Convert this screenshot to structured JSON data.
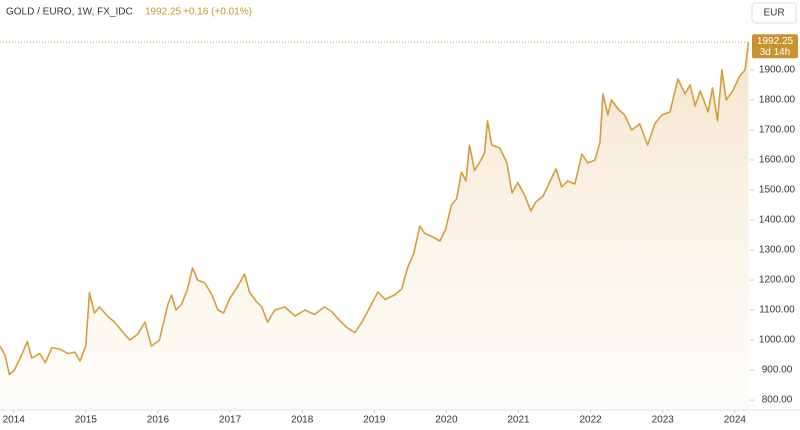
{
  "chart_data": {
    "type": "area",
    "title": "GOLD / EURO, 1W, FX_IDC",
    "last_price": 1992.25,
    "change": "+0.16 (+0.01%)",
    "countdown": "3d 14h",
    "currency": "EUR",
    "color": "#d49e3a",
    "x": [
      2013.81,
      2013.88,
      2013.94,
      2014.01,
      2014.11,
      2014.19,
      2014.25,
      2014.36,
      2014.44,
      2014.53,
      2014.64,
      2014.75,
      2014.85,
      2014.92,
      2015.0,
      2015.05,
      2015.12,
      2015.19,
      2015.3,
      2015.4,
      2015.5,
      2015.61,
      2015.72,
      2015.82,
      2015.91,
      2016.02,
      2016.14,
      2016.19,
      2016.25,
      2016.33,
      2016.41,
      2016.48,
      2016.55,
      2016.65,
      2016.75,
      2016.83,
      2016.91,
      2017.0,
      2017.11,
      2017.2,
      2017.27,
      2017.36,
      2017.44,
      2017.52,
      2017.62,
      2017.76,
      2017.9,
      2018.04,
      2018.17,
      2018.31,
      2018.41,
      2018.52,
      2018.63,
      2018.73,
      2018.83,
      2018.94,
      2019.05,
      2019.15,
      2019.28,
      2019.38,
      2019.46,
      2019.55,
      2019.63,
      2019.7,
      2019.8,
      2019.91,
      2019.99,
      2020.07,
      2020.14,
      2020.21,
      2020.27,
      2020.32,
      2020.39,
      2020.48,
      2020.53,
      2020.57,
      2020.63,
      2020.74,
      2020.84,
      2020.91,
      2020.99,
      2021.09,
      2021.17,
      2021.24,
      2021.34,
      2021.42,
      2021.52,
      2021.6,
      2021.68,
      2021.78,
      2021.88,
      2021.96,
      2022.06,
      2022.13,
      2022.17,
      2022.24,
      2022.29,
      2022.38,
      2022.47,
      2022.57,
      2022.68,
      2022.79,
      2022.89,
      2022.99,
      2023.1,
      2023.21,
      2023.31,
      2023.38,
      2023.45,
      2023.52,
      2023.63,
      2023.69,
      2023.76,
      2023.82,
      2023.88,
      2023.97,
      2024.07,
      2024.14,
      2024.19
    ],
    "values": [
      980,
      950,
      885,
      900,
      950,
      995,
      940,
      955,
      925,
      975,
      970,
      955,
      960,
      930,
      980,
      1157,
      1090,
      1110,
      1080,
      1060,
      1030,
      1000,
      1020,
      1060,
      980,
      1000,
      1120,
      1150,
      1100,
      1120,
      1170,
      1240,
      1200,
      1190,
      1150,
      1100,
      1090,
      1140,
      1180,
      1220,
      1160,
      1130,
      1110,
      1060,
      1100,
      1110,
      1080,
      1100,
      1085,
      1110,
      1095,
      1065,
      1040,
      1025,
      1060,
      1110,
      1160,
      1135,
      1150,
      1170,
      1240,
      1290,
      1380,
      1355,
      1345,
      1330,
      1370,
      1450,
      1470,
      1560,
      1530,
      1650,
      1565,
      1600,
      1625,
      1730,
      1650,
      1640,
      1590,
      1490,
      1525,
      1480,
      1430,
      1460,
      1480,
      1520,
      1570,
      1510,
      1530,
      1520,
      1620,
      1590,
      1600,
      1660,
      1820,
      1750,
      1800,
      1770,
      1750,
      1700,
      1720,
      1650,
      1720,
      1750,
      1760,
      1870,
      1820,
      1850,
      1780,
      1830,
      1760,
      1840,
      1730,
      1900,
      1800,
      1830,
      1880,
      1900,
      1992.25
    ],
    "xlim": [
      2013.81,
      2024.21
    ],
    "xticks": [
      2014,
      2015,
      2016,
      2017,
      2018,
      2019,
      2020,
      2021,
      2022,
      2023,
      2024
    ],
    "ylim": [
      767,
      2033
    ],
    "yticks": [
      {
        "value": 800,
        "label": "800.00"
      },
      {
        "value": 900,
        "label": "900.00"
      },
      {
        "value": 1000,
        "label": "1000.00"
      },
      {
        "value": 1100,
        "label": "1100.00"
      },
      {
        "value": 1200,
        "label": "1200.00"
      },
      {
        "value": 1300,
        "label": "1300.00"
      },
      {
        "value": 1400,
        "label": "1400.00"
      },
      {
        "value": 1500,
        "label": "1500.00"
      },
      {
        "value": 1600,
        "label": "1600.00"
      },
      {
        "value": 1700,
        "label": "1700.00"
      },
      {
        "value": 1800,
        "label": "1800.00"
      },
      {
        "value": 1900,
        "label": "1900.00"
      }
    ]
  }
}
